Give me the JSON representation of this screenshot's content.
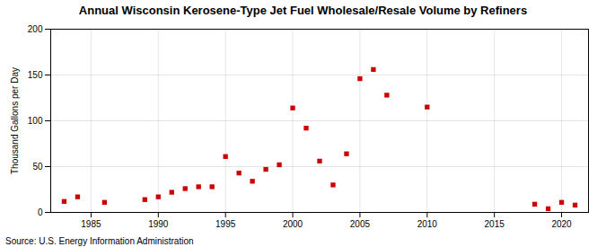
{
  "chart_data": {
    "type": "scatter",
    "title": "Annual Wisconsin Kerosene-Type Jet Fuel Wholesale/Resale Volume by Refiners",
    "ylabel": "Thousand Gallons per Day",
    "source": "Source: U.S. Energy Information Administration",
    "x": [
      1983,
      1984,
      1986,
      1989,
      1990,
      1991,
      1992,
      1993,
      1994,
      1995,
      1996,
      1997,
      1998,
      1999,
      2000,
      2001,
      2002,
      2003,
      2004,
      2005,
      2006,
      2007,
      2010,
      2018,
      2019,
      2020,
      2021
    ],
    "values": [
      12,
      17,
      11,
      14,
      17,
      22,
      26,
      28,
      28,
      61,
      43,
      34,
      47,
      52,
      114,
      92,
      56,
      30,
      64,
      146,
      156,
      128,
      115,
      9,
      4,
      11,
      8
    ],
    "color": "#cc0000",
    "marker": "square",
    "xlim": [
      1982,
      2022
    ],
    "xticks": [
      1985,
      1990,
      1995,
      2000,
      2005,
      2010,
      2015,
      2020
    ],
    "ylim": [
      0,
      200
    ],
    "yticks": [
      0,
      50,
      100,
      150,
      200
    ],
    "grid": true
  }
}
